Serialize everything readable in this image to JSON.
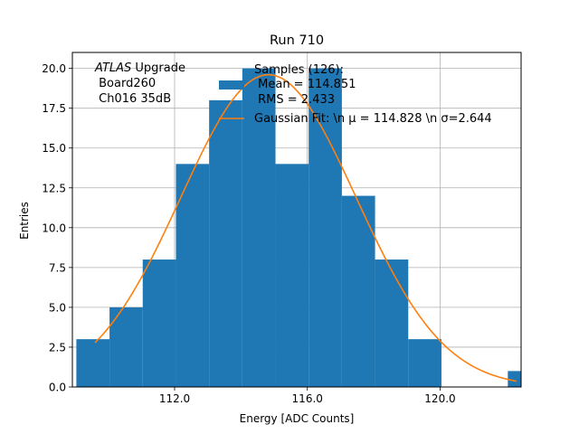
{
  "chart_data": {
    "type": "bar",
    "title": "Run 710",
    "xlabel": "Energy [ADC Counts]",
    "ylabel": "Entries",
    "xlim": [
      108.92,
      122.44
    ],
    "ylim": [
      0,
      21
    ],
    "grid": true,
    "xticks": [
      112.0,
      116.0,
      120.0
    ],
    "xtick_labels": [
      "112.0",
      "116.0",
      "120.0"
    ],
    "yticks": [
      0,
      2.5,
      5,
      7.5,
      10,
      12.5,
      15,
      17.5,
      20
    ],
    "ytick_labels": [
      "0.0",
      "2.5",
      "5.0",
      "7.5",
      "10.0",
      "12.5",
      "15.0",
      "17.5",
      "20.0"
    ],
    "bins": [
      {
        "x0": 109.04,
        "x1": 110.04,
        "value": 3
      },
      {
        "x0": 110.04,
        "x1": 111.04,
        "value": 5
      },
      {
        "x0": 111.04,
        "x1": 112.04,
        "value": 8
      },
      {
        "x0": 112.04,
        "x1": 113.04,
        "value": 14
      },
      {
        "x0": 113.04,
        "x1": 114.04,
        "value": 18
      },
      {
        "x0": 114.04,
        "x1": 115.04,
        "value": 20
      },
      {
        "x0": 115.04,
        "x1": 116.04,
        "value": 14
      },
      {
        "x0": 116.04,
        "x1": 117.04,
        "value": 20
      },
      {
        "x0": 117.04,
        "x1": 118.04,
        "value": 12
      },
      {
        "x0": 118.04,
        "x1": 119.04,
        "value": 8
      },
      {
        "x0": 119.04,
        "x1": 120.04,
        "value": 3
      },
      {
        "x0": 120.04,
        "x1": 121.04,
        "value": 0
      },
      {
        "x0": 121.04,
        "x1": 122.04,
        "value": 0
      },
      {
        "x0": 122.04,
        "x1": 123.04,
        "value": 1
      }
    ],
    "fit": {
      "mu": 114.828,
      "sigma": 2.644,
      "amplitude": 19.6,
      "x_start": 109.6,
      "x_end": 122.3
    },
    "colors": {
      "bars": "#1f77b4",
      "fit": "#ff7f0e",
      "grid": "#b0b0b0"
    },
    "annotation": {
      "italic": "ATLAS",
      "line1_rest": " Upgrade",
      "line2": " Board260",
      "line3": " Ch016 35dB"
    },
    "legend": {
      "placement": "top-right",
      "samples_line1": "Samples (126):",
      "samples_line2": " Mean = 114.851",
      "samples_line3": " RMS = 2.433",
      "fit_label": "Gaussian Fit: \\n μ = 114.828 \\n σ=2.644"
    }
  }
}
